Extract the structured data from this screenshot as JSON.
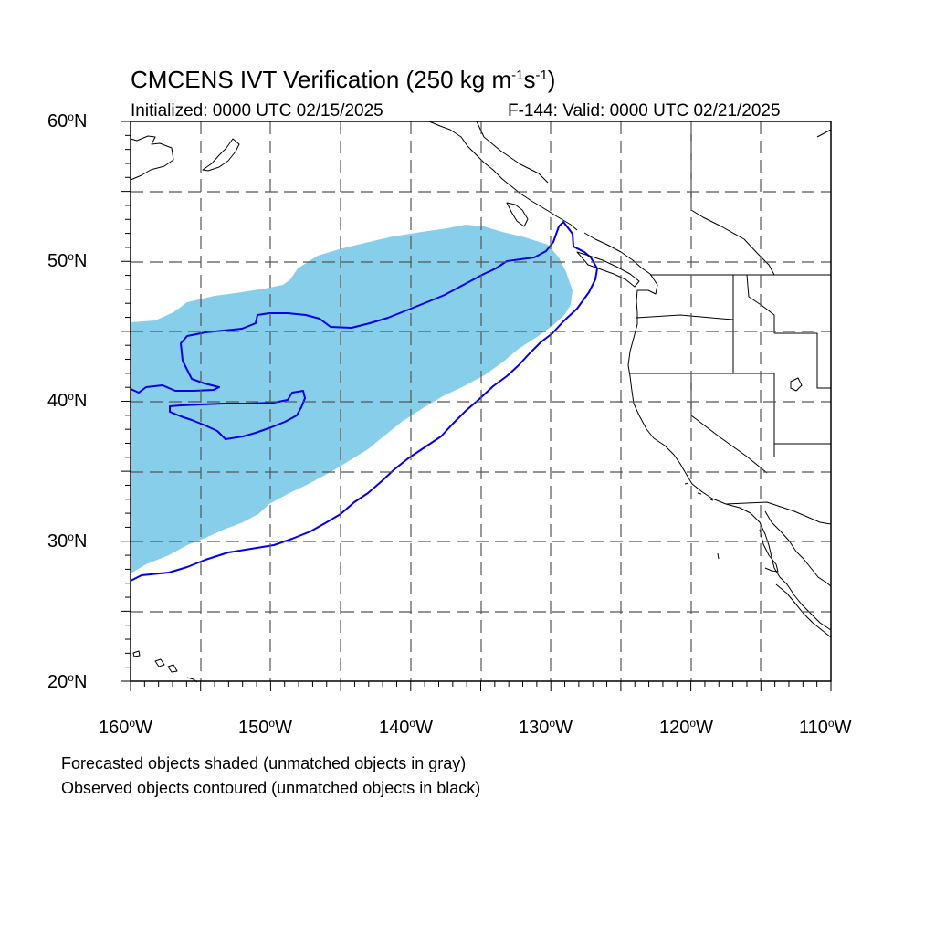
{
  "header": {
    "title": "CMCENS IVT Verification (250 kg m",
    "title_exp1": "-1",
    "title_mid": "s",
    "title_exp2": "-1",
    "title_end": ")",
    "initialized": "Initialized: 0000 UTC 02/15/2025",
    "valid": "F-144: Valid: 0000 UTC 02/21/2025"
  },
  "axes": {
    "lat_labels": [
      {
        "text": "60",
        "sup": "o",
        "hemi": "N"
      },
      {
        "text": "50",
        "sup": "o",
        "hemi": "N"
      },
      {
        "text": "40",
        "sup": "o",
        "hemi": "N"
      },
      {
        "text": "30",
        "sup": "o",
        "hemi": "N"
      },
      {
        "text": "20",
        "sup": "o",
        "hemi": "N"
      }
    ],
    "lon_labels": [
      {
        "text": "160",
        "sup": "o",
        "hemi": "W"
      },
      {
        "text": "150",
        "sup": "o",
        "hemi": "W"
      },
      {
        "text": "140",
        "sup": "o",
        "hemi": "W"
      },
      {
        "text": "130",
        "sup": "o",
        "hemi": "W"
      },
      {
        "text": "120",
        "sup": "o",
        "hemi": "W"
      },
      {
        "text": "110",
        "sup": "o",
        "hemi": "W"
      }
    ],
    "lat_range": [
      20,
      60
    ],
    "lon_range": [
      -160,
      -110
    ],
    "grid_interval_deg": 5
  },
  "legend": {
    "line1": "Forecasted objects shaded (unmatched objects in gray)",
    "line2": "Observed objects contoured (unmatched objects in black)"
  },
  "colors": {
    "forecast_fill": "#87ceeb",
    "observed_contour": "#0000ee",
    "coastline": "#000000",
    "grid": "#555555"
  }
}
